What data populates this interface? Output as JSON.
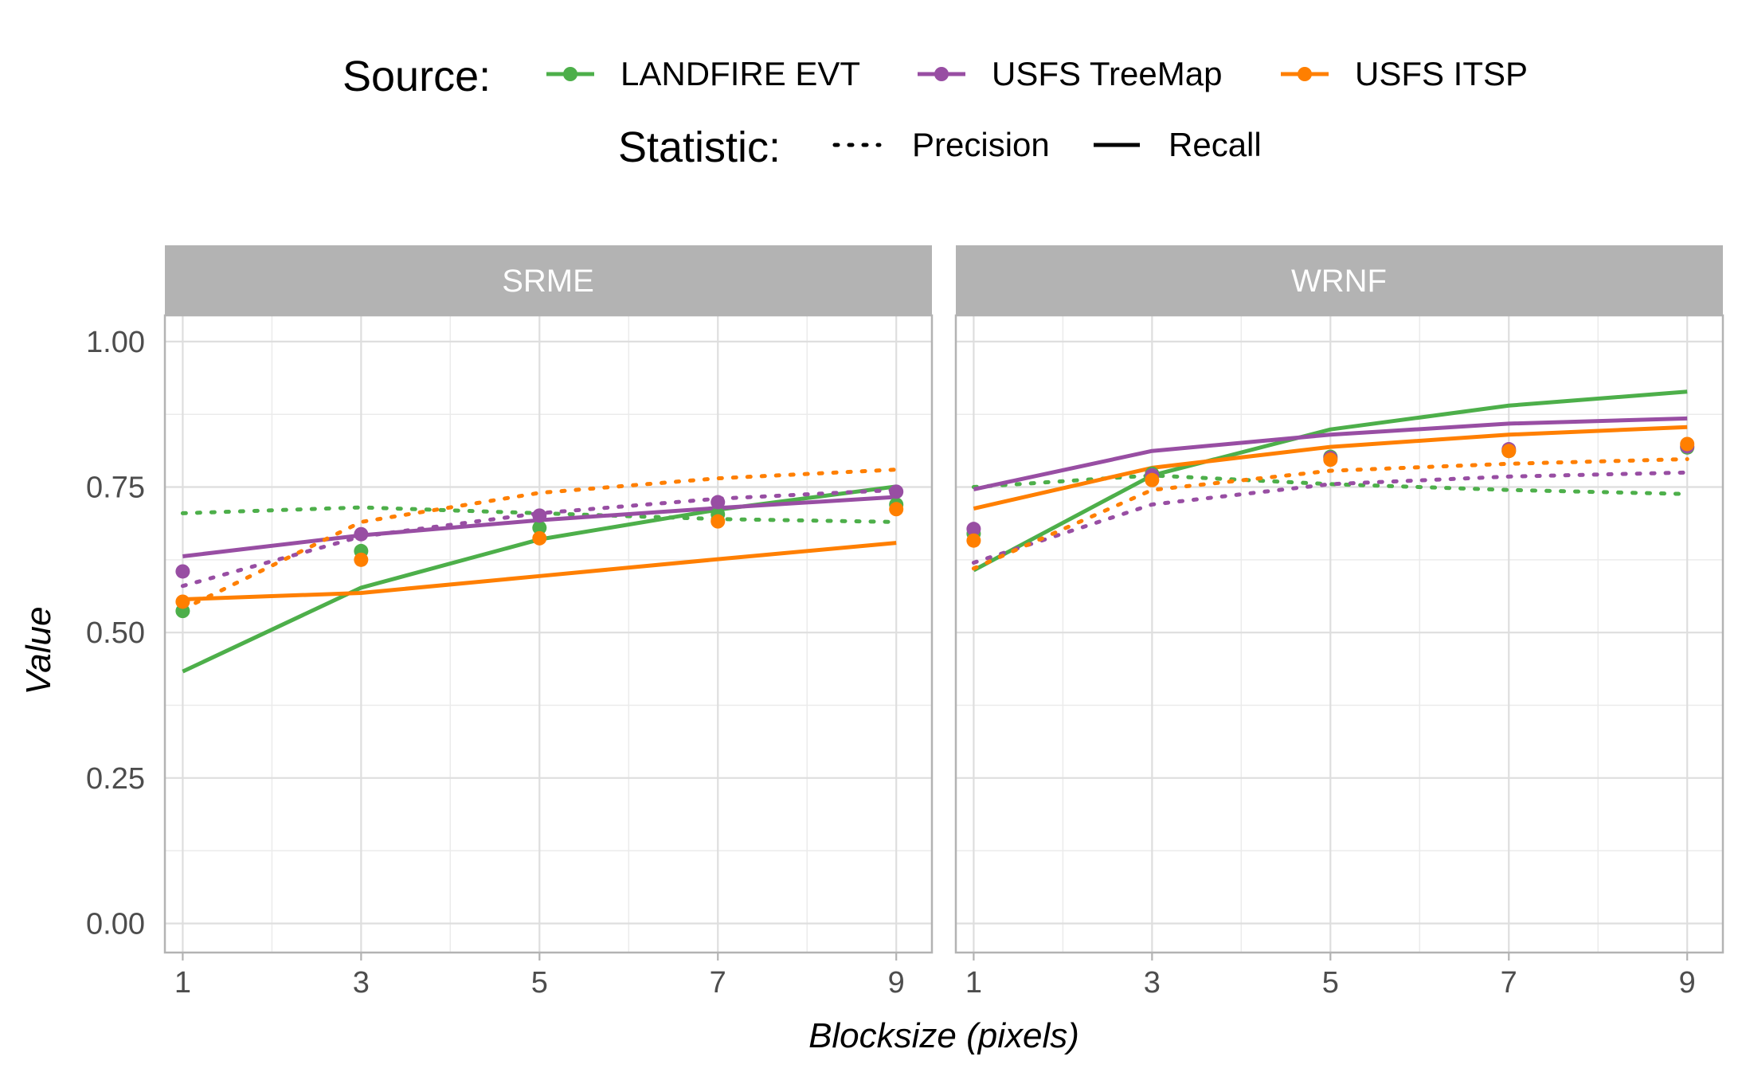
{
  "legend": {
    "source_title": "Source:",
    "statistic_title": "Statistic:",
    "sources": [
      {
        "name": "LANDFIRE EVT",
        "color": "#4daf4a"
      },
      {
        "name": "USFS TreeMap",
        "color": "#984ea3"
      },
      {
        "name": "USFS ITSP",
        "color": "#ff7f00"
      }
    ],
    "statistics": [
      {
        "name": "Precision",
        "style": "dotted"
      },
      {
        "name": "Recall",
        "style": "solid"
      }
    ]
  },
  "chart_data": {
    "type": "line",
    "xlabel": "Blocksize (pixels)",
    "ylabel": "Value",
    "x": [
      1,
      3,
      5,
      7,
      9
    ],
    "x_ticks": [
      1,
      3,
      5,
      7,
      9
    ],
    "y_ticks": [
      0.0,
      0.25,
      0.5,
      0.75,
      1.0
    ],
    "y_tick_labels": [
      "0.00",
      "0.25",
      "0.50",
      "0.75",
      "1.00"
    ],
    "xlim": [
      0.8,
      9.4
    ],
    "ylim": [
      -0.05,
      1.045
    ],
    "grid": true,
    "legend_position": "top",
    "panels": [
      {
        "label": "SRME",
        "series": [
          {
            "source": "LANDFIRE EVT",
            "statistic": "Precision",
            "values": [
              0.705,
              0.715,
              0.705,
              0.695,
              0.69
            ]
          },
          {
            "source": "LANDFIRE EVT",
            "statistic": "Recall",
            "values": [
              0.433,
              0.577,
              0.66,
              0.711,
              0.751
            ]
          },
          {
            "source": "LANDFIRE EVT",
            "statistic": "Point",
            "values": [
              0.537,
              0.64,
              0.68,
              0.703,
              0.72
            ]
          },
          {
            "source": "USFS TreeMap",
            "statistic": "Precision",
            "values": [
              0.58,
              0.665,
              0.705,
              0.73,
              0.745
            ]
          },
          {
            "source": "USFS TreeMap",
            "statistic": "Recall",
            "values": [
              0.631,
              0.667,
              0.693,
              0.714,
              0.733
            ]
          },
          {
            "source": "USFS TreeMap",
            "statistic": "Point",
            "values": [
              0.605,
              0.669,
              0.701,
              0.724,
              0.742
            ]
          },
          {
            "source": "USFS ITSP",
            "statistic": "Precision",
            "values": [
              0.54,
              0.69,
              0.74,
              0.765,
              0.78
            ]
          },
          {
            "source": "USFS ITSP",
            "statistic": "Recall",
            "values": [
              0.557,
              0.568,
              0.597,
              0.626,
              0.654
            ]
          },
          {
            "source": "USFS ITSP",
            "statistic": "Point",
            "values": [
              0.553,
              0.625,
              0.662,
              0.691,
              0.712
            ]
          }
        ]
      },
      {
        "label": "WRNF",
        "series": [
          {
            "source": "LANDFIRE EVT",
            "statistic": "Precision",
            "values": [
              0.75,
              0.77,
              0.755,
              0.745,
              0.738
            ]
          },
          {
            "source": "LANDFIRE EVT",
            "statistic": "Recall",
            "values": [
              0.607,
              0.77,
              0.849,
              0.89,
              0.914
            ]
          },
          {
            "source": "LANDFIRE EVT",
            "statistic": "Point",
            "values": [
              0.67,
              0.773,
              0.802,
              0.812,
              0.818
            ]
          },
          {
            "source": "USFS TreeMap",
            "statistic": "Precision",
            "values": [
              0.62,
              0.72,
              0.755,
              0.768,
              0.775
            ]
          },
          {
            "source": "USFS TreeMap",
            "statistic": "Recall",
            "values": [
              0.746,
              0.812,
              0.84,
              0.859,
              0.868
            ]
          },
          {
            "source": "USFS TreeMap",
            "statistic": "Point",
            "values": [
              0.678,
              0.77,
              0.8,
              0.815,
              0.82
            ]
          },
          {
            "source": "USFS ITSP",
            "statistic": "Precision",
            "values": [
              0.61,
              0.745,
              0.778,
              0.79,
              0.798
            ]
          },
          {
            "source": "USFS ITSP",
            "statistic": "Recall",
            "values": [
              0.713,
              0.783,
              0.819,
              0.84,
              0.853
            ]
          },
          {
            "source": "USFS ITSP",
            "statistic": "Point",
            "values": [
              0.658,
              0.762,
              0.797,
              0.812,
              0.824
            ]
          }
        ]
      }
    ]
  }
}
